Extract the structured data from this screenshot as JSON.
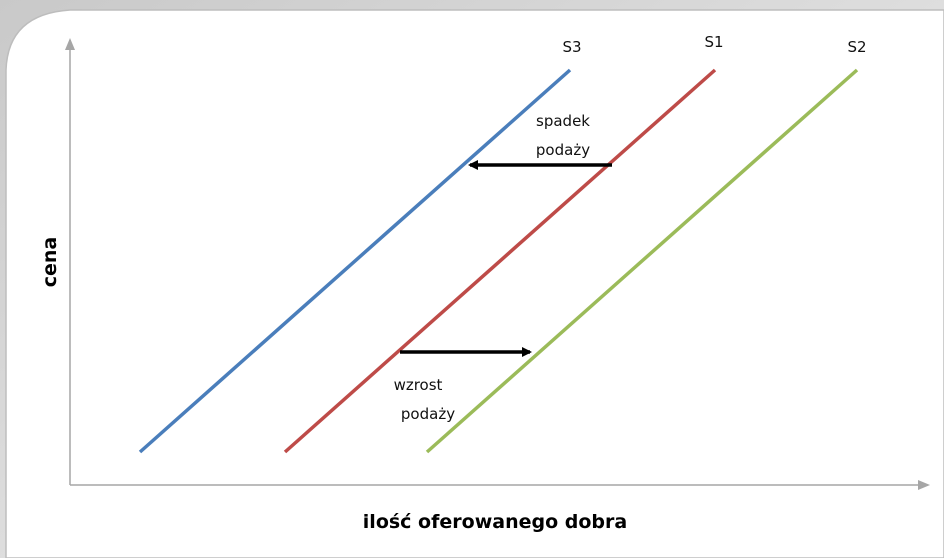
{
  "curves": [
    {
      "label": "S3"
    },
    {
      "label": "S1"
    },
    {
      "label": "S2"
    }
  ],
  "annotations": [
    {
      "lines": [
        "spadek",
        "podaży"
      ]
    },
    {
      "lines": [
        "wzrost",
        "podaży"
      ]
    }
  ],
  "axes": {
    "y_label": "cena",
    "x_label": "ilość oferowanego dobra"
  }
}
